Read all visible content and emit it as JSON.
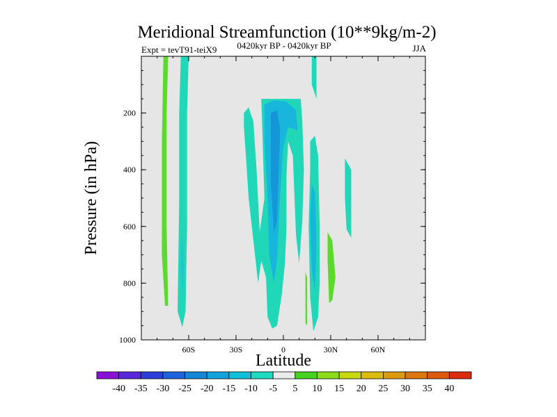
{
  "chart_data": {
    "type": "heatmap",
    "title": "Meridional Streamfunction (10**9kg/m-2)",
    "subtitle_left": "Expt = tevT91-teiX9",
    "subtitle_center": "0420kyr BP - 0420kyr BP",
    "subtitle_right": "JJA",
    "xlabel": "Latitude",
    "ylabel": "Pressure (in hPa)",
    "xlim": [
      -90,
      90
    ],
    "ylim": [
      1000,
      0
    ],
    "x_ticks": [
      {
        "value": -60,
        "label": "60S"
      },
      {
        "value": -30,
        "label": "30S"
      },
      {
        "value": 0,
        "label": "0"
      },
      {
        "value": 30,
        "label": "30N"
      },
      {
        "value": 60,
        "label": "60N"
      }
    ],
    "y_ticks": [
      {
        "value": 200,
        "label": "200"
      },
      {
        "value": 400,
        "label": "400"
      },
      {
        "value": 600,
        "label": "600"
      },
      {
        "value": 800,
        "label": "800"
      },
      {
        "value": 1000,
        "label": "1000"
      }
    ],
    "background_level_color": "#e6e6e6",
    "colorbar": {
      "ticks": [
        "-40",
        "-35",
        "-30",
        "-25",
        "-20",
        "-15",
        "-10",
        "-5",
        "5",
        "10",
        "15",
        "20",
        "25",
        "30",
        "35",
        "40"
      ],
      "colors": [
        "#8a10d8",
        "#5a28dc",
        "#2d3fd8",
        "#1e63de",
        "#1486d8",
        "#12a3dc",
        "#10c0d8",
        "#19dcc0",
        "#ebebeb",
        "#46d21e",
        "#8ddc1a",
        "#c8d811",
        "#dcbc0e",
        "#dc9a0e",
        "#dc780e",
        "#dc5a0e",
        "#dc2a0e"
      ]
    },
    "regions": [
      {
        "level": "5 to 10",
        "color": "#5ada2a",
        "points": [
          [
            -76,
            0
          ],
          [
            -73,
            0
          ],
          [
            -74,
            200
          ],
          [
            -74,
            600
          ],
          [
            -73,
            880
          ],
          [
            -75,
            880
          ],
          [
            -77,
            700
          ],
          [
            -77,
            300
          ]
        ]
      },
      {
        "level": "-10 to -5",
        "color": "#20d8b8",
        "points": [
          [
            -65,
            0
          ],
          [
            -60,
            0
          ],
          [
            -61,
            200
          ],
          [
            -61,
            600
          ],
          [
            -62,
            900
          ],
          [
            -64,
            955
          ],
          [
            -67,
            900
          ],
          [
            -66,
            500
          ],
          [
            -66,
            200
          ]
        ]
      },
      {
        "level": "-15 to -10",
        "color": "#22c4d0",
        "points": [
          [
            -64,
            600
          ],
          [
            -63,
            750
          ],
          [
            -64,
            850
          ],
          [
            -65,
            750
          ]
        ]
      },
      {
        "level": "-10 to -5",
        "color": "#20d8b8",
        "points": [
          [
            -25,
            200
          ],
          [
            -22,
            180
          ],
          [
            -19,
            230
          ],
          [
            -17,
            400
          ],
          [
            -15,
            620
          ],
          [
            -12,
            500
          ],
          [
            -14,
            150
          ],
          [
            -6,
            150
          ],
          [
            6,
            150
          ],
          [
            11,
            150
          ],
          [
            12,
            230
          ],
          [
            13,
            400
          ],
          [
            12,
            580
          ],
          [
            10,
            730
          ],
          [
            8,
            630
          ],
          [
            6,
            350
          ],
          [
            3,
            300
          ],
          [
            2,
            420
          ],
          [
            2,
            600
          ],
          [
            1,
            730
          ],
          [
            -1,
            840
          ],
          [
            -4,
            950
          ],
          [
            -7,
            960
          ],
          [
            -10,
            920
          ],
          [
            -11,
            780
          ],
          [
            -14,
            720
          ],
          [
            -16,
            800
          ],
          [
            -18,
            700
          ],
          [
            -22,
            500
          ],
          [
            -24,
            330
          ],
          [
            -25,
            250
          ]
        ]
      },
      {
        "level": "-15 to -10",
        "color": "#18b6dc",
        "points": [
          [
            -12,
            170
          ],
          [
            -6,
            155
          ],
          [
            2,
            160
          ],
          [
            8,
            190
          ],
          [
            9,
            260
          ],
          [
            3,
            250
          ],
          [
            0,
            320
          ],
          [
            -2,
            480
          ],
          [
            -4,
            720
          ],
          [
            -6,
            800
          ],
          [
            -9,
            700
          ],
          [
            -10,
            500
          ],
          [
            -12,
            300
          ]
        ]
      },
      {
        "level": "-20 to -15",
        "color": "#1496d8",
        "points": [
          [
            -8,
            200
          ],
          [
            -4,
            190
          ],
          [
            -2,
            260
          ],
          [
            -3,
            400
          ],
          [
            -4,
            580
          ],
          [
            -6,
            620
          ],
          [
            -8,
            450
          ],
          [
            -8,
            300
          ]
        ]
      },
      {
        "level": "-10 to -5",
        "color": "#20d8b8",
        "points": [
          [
            18,
            0
          ],
          [
            21,
            0
          ],
          [
            21,
            150
          ],
          [
            18,
            100
          ]
        ]
      },
      {
        "level": "-10 to -5",
        "color": "#20d8b8",
        "points": [
          [
            17,
            300
          ],
          [
            20,
            280
          ],
          [
            22,
            350
          ],
          [
            23,
            600
          ],
          [
            23,
            800
          ],
          [
            22,
            920
          ],
          [
            19,
            970
          ],
          [
            17,
            850
          ],
          [
            16,
            600
          ],
          [
            17,
            400
          ]
        ]
      },
      {
        "level": "-15 to -10",
        "color": "#18b6dc",
        "points": [
          [
            18,
            450
          ],
          [
            20,
            480
          ],
          [
            21,
            650
          ],
          [
            20,
            830
          ],
          [
            18,
            750
          ],
          [
            17,
            580
          ]
        ]
      },
      {
        "level": "5 to 10",
        "color": "#5ada2a",
        "points": [
          [
            28,
            620
          ],
          [
            31,
            650
          ],
          [
            33,
            780
          ],
          [
            31,
            860
          ],
          [
            29,
            870
          ],
          [
            28,
            720
          ]
        ]
      },
      {
        "level": "-10 to -5",
        "color": "#20d8b8",
        "points": [
          [
            39,
            360
          ],
          [
            43,
            400
          ],
          [
            43,
            640
          ],
          [
            40,
            610
          ],
          [
            39,
            500
          ]
        ]
      },
      {
        "level": "5 to 10",
        "color": "#5ada2a",
        "points": [
          [
            14,
            760
          ],
          [
            15,
            780
          ],
          [
            15,
            950
          ],
          [
            14,
            940
          ]
        ]
      }
    ]
  }
}
